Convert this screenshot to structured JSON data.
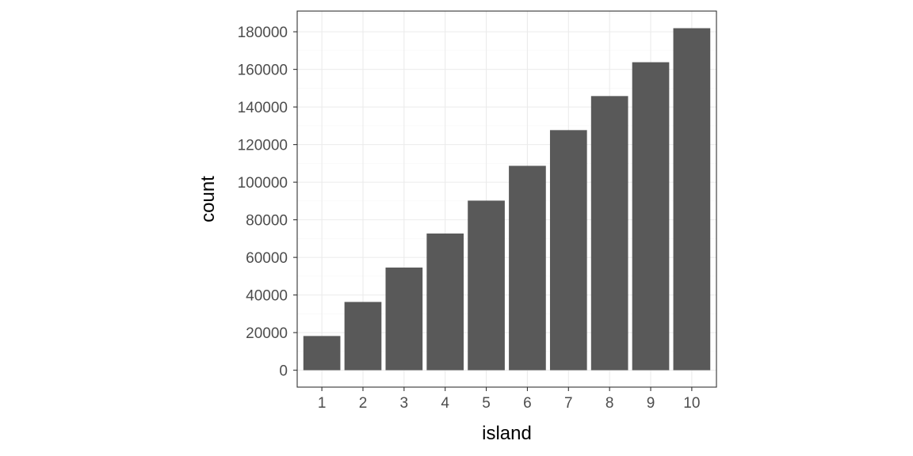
{
  "chart_data": {
    "type": "bar",
    "xlabel": "island",
    "ylabel": "count",
    "categories": [
      "1",
      "2",
      "3",
      "4",
      "5",
      "6",
      "7",
      "8",
      "9",
      "10"
    ],
    "values": [
      18200,
      36300,
      54600,
      72700,
      90200,
      108700,
      127700,
      145800,
      163800,
      181900
    ],
    "ylim": [
      -9000,
      191000
    ],
    "yticks": [
      0,
      20000,
      40000,
      60000,
      80000,
      100000,
      120000,
      140000,
      160000,
      180000
    ],
    "grid": true,
    "legend": "none",
    "colors": {
      "bar": "#595959",
      "panel_background": "#ffffff",
      "grid_major": "#ebebeb",
      "grid_minor": "#f5f5f5",
      "panel_border": "#333333",
      "tick_text": "#4d4d4d"
    }
  }
}
